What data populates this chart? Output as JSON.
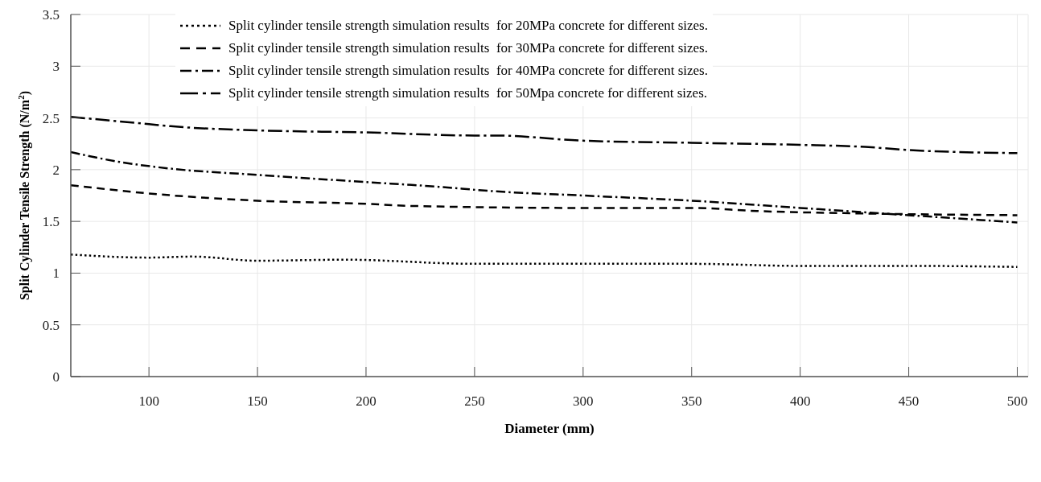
{
  "chart_data": {
    "type": "line",
    "xlabel": "Diameter (mm)",
    "ylabel": "Split Cylinder Tensile Strength (N/m$^{2}$)",
    "xlim": [
      64,
      505
    ],
    "xticks": [
      100,
      150,
      200,
      250,
      300,
      350,
      400,
      450,
      500
    ],
    "ylim": [
      0,
      3.5
    ],
    "yticks": [
      0,
      0.5,
      1,
      1.5,
      2,
      2.5,
      3,
      3.5
    ],
    "grid": true,
    "legend": "top",
    "marker": "none",
    "series": [
      {
        "name": "Split cylinder tensile strength simulation results  for 20MPa concrete for different sizes.",
        "color": "#000000",
        "line_style": "dotted",
        "x": [
          64,
          100,
          120,
          150,
          190,
          250,
          350,
          400,
          450,
          500
        ],
        "values": [
          1.18,
          1.15,
          1.16,
          1.12,
          1.13,
          1.09,
          1.09,
          1.07,
          1.07,
          1.06
        ]
      },
      {
        "name": "Split cylinder tensile strength simulation results  for 30MPa concrete for different sizes.",
        "color": "#000000",
        "line_style": "dashed",
        "x": [
          64,
          100,
          150,
          200,
          220,
          300,
          350,
          380,
          420,
          450,
          500
        ],
        "values": [
          1.85,
          1.77,
          1.7,
          1.67,
          1.65,
          1.63,
          1.63,
          1.6,
          1.58,
          1.57,
          1.56
        ]
      },
      {
        "name": "Split cylinder tensile strength simulation results  for 40MPa concrete for different sizes.",
        "color": "#000000",
        "line_style": "dashdot",
        "x": [
          64,
          85,
          110,
          150,
          200,
          230,
          260,
          300,
          350,
          400,
          450,
          500
        ],
        "values": [
          2.17,
          2.08,
          2.01,
          1.95,
          1.88,
          1.84,
          1.79,
          1.75,
          1.7,
          1.63,
          1.56,
          1.49
        ]
      },
      {
        "name": "Split cylinder tensile strength simulation results  for 50Mpa concrete for different sizes.",
        "color": "#000000",
        "line_style": "longdashdot",
        "x": [
          64,
          100,
          110,
          150,
          200,
          250,
          260,
          300,
          350,
          400,
          430,
          450,
          500
        ],
        "values": [
          2.51,
          2.44,
          2.42,
          2.38,
          2.36,
          2.33,
          2.33,
          2.28,
          2.26,
          2.24,
          2.22,
          2.19,
          2.16
        ]
      }
    ]
  }
}
